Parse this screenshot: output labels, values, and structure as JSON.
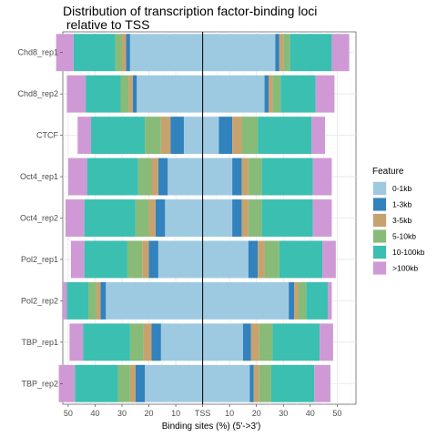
{
  "chart_data": {
    "type": "bar",
    "orientation": "horizontal-diverging",
    "title_lines": [
      "Distribution of transcription factor-binding loci",
      " relative to TSS"
    ],
    "xlabel": "Binding sites (%) (5'->3')",
    "ylabel": "",
    "x_tick_labels": [
      "50",
      "40",
      "30",
      "20",
      "10",
      "TSS",
      "10",
      "20",
      "30",
      "40",
      "50"
    ],
    "xlim": [
      -52,
      57
    ],
    "grid": true,
    "legend": {
      "title": "Feature",
      "position": "right",
      "entries": [
        "0-1kb",
        "1-3kb",
        "3-5kb",
        "5-10kb",
        "10-100kb",
        ">100kb"
      ]
    },
    "colors": {
      "0-1kb": "#9ecae1",
      "1-3kb": "#3182bd",
      "3-5kb": "#c8a26e",
      "5-10kb": "#88bb77",
      "10-100kb": "#3bbfb0",
      ">100kb": "#cf99d6"
    },
    "categories": [
      "Chd8_rep1",
      "Chd8_rep2",
      "CTCF",
      "Oct4_rep1",
      "Oct4_rep2",
      "Pol2_rep1",
      "Pol2_rep2",
      "TBP_rep1",
      "TBP_rep2"
    ],
    "series": [
      {
        "name": "0-1kb",
        "upstream": [
          27,
          24.5,
          7,
          13,
          14,
          16.5,
          36,
          15.5,
          21.5
        ],
        "downstream": [
          27,
          23,
          6,
          11,
          11,
          17,
          32,
          15,
          17.5
        ]
      },
      {
        "name": "1-3kb",
        "upstream": [
          1.5,
          1.5,
          5,
          3.5,
          3.5,
          3.5,
          2,
          3.5,
          3.5
        ],
        "downstream": [
          1.5,
          1.5,
          5,
          3.5,
          3.5,
          3.5,
          2,
          3,
          1.5
        ]
      },
      {
        "name": "3-5kb",
        "upstream": [
          1.5,
          1.5,
          3.5,
          2.5,
          2.5,
          2.5,
          1.5,
          3,
          2
        ]
      },
      {
        "name": "5-10kb",
        "upstream": [
          2.5,
          3,
          6,
          5,
          5,
          5.5,
          3,
          5,
          4.5
        ]
      },
      {
        "name": "10-100kb",
        "upstream": [
          15.5,
          13,
          20,
          19,
          19,
          16,
          8,
          17.5,
          16
        ]
      },
      {
        "name": ">100kb",
        "upstream": [
          6.5,
          7,
          5,
          7,
          7,
          5,
          1.5,
          5,
          6
        ]
      }
    ]
  }
}
